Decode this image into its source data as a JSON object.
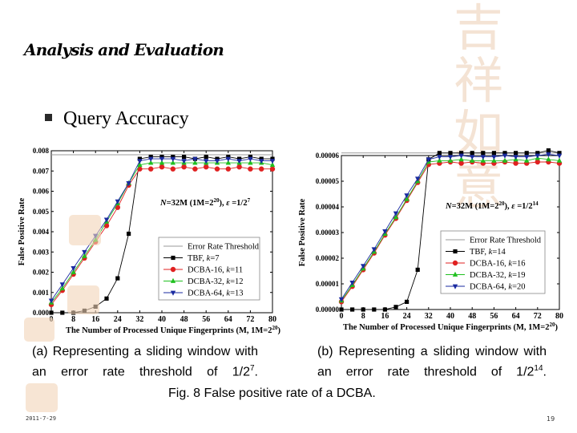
{
  "slide": {
    "title": "Analysis and Evaluation",
    "bullet": "Query Accuracy",
    "caption_a_text": "(a) Representing a sliding window with an error rate threshold of 1/2",
    "caption_a_exp": "7",
    "caption_b_text": "(b) Representing a sliding window with an error rate threshold of 1/2",
    "caption_b_exp": "14",
    "caption_end": ".",
    "fig_caption": "Fig. 8 False positive rate of a DCBA.",
    "date": "2011-7-29",
    "page": "19",
    "decor_chars": "吉祥如意"
  },
  "colors": {
    "threshold": "#9a9a9a",
    "tbf": "#000000",
    "dcba16": "#e02020",
    "dcba32": "#20c020",
    "dcba64": "#1a2aa0",
    "decor": "#f4e3d4"
  },
  "chart_data": [
    {
      "type": "line",
      "ylabel": "False Positive Rate",
      "xlabel": "The Number of Processed Unique Fingerprints (M, 1M=2^20)",
      "xlabel_parts": [
        "The Number of Processed Unique Fingerprints (M, 1M=2",
        "20",
        ")"
      ],
      "annotation_parts": [
        "N",
        "=32M (1M=2",
        "20",
        "), ",
        "ε",
        " =1/2",
        "7"
      ],
      "xlim": [
        0,
        80
      ],
      "ylim": [
        0,
        0.008
      ],
      "xticks": [
        0,
        8,
        16,
        24,
        32,
        40,
        48,
        56,
        64,
        72,
        80
      ],
      "ytick_labels": [
        "0.000",
        "0.001",
        "0.002",
        "0.003",
        "0.004",
        "0.005",
        "0.006",
        "0.007",
        "0.008"
      ],
      "x": [
        0,
        4,
        8,
        12,
        16,
        20,
        24,
        28,
        32,
        36,
        40,
        44,
        48,
        52,
        56,
        60,
        64,
        68,
        72,
        76,
        80
      ],
      "legend": {
        "threshold": "Error Rate Threshold",
        "tbf": [
          "TBF, ",
          "k",
          "=7"
        ],
        "dcba16": [
          "DCBA-16, ",
          "k",
          "=11"
        ],
        "dcba32": [
          "DCBA-32, ",
          "k",
          "=12"
        ],
        "dcba64": [
          "DCBA-64, ",
          "k",
          "=13"
        ]
      },
      "threshold": 0.0078,
      "series": [
        {
          "name": "TBF, k=7",
          "key": "tbf",
          "marker": "square",
          "values": [
            0,
            0,
            0,
            0.0001,
            0.0003,
            0.0007,
            0.0017,
            0.0039,
            0.0076,
            0.0077,
            0.0077,
            0.0077,
            0.0077,
            0.0076,
            0.0077,
            0.0076,
            0.0077,
            0.0076,
            0.0077,
            0.0076,
            0.0076
          ]
        },
        {
          "name": "DCBA-16, k=11",
          "key": "dcba16",
          "marker": "circle",
          "values": [
            0.0004,
            0.0011,
            0.0019,
            0.0027,
            0.0035,
            0.0043,
            0.0052,
            0.0063,
            0.0071,
            0.0071,
            0.0072,
            0.0071,
            0.0072,
            0.0071,
            0.0072,
            0.0071,
            0.0071,
            0.0072,
            0.0071,
            0.0071,
            0.0071
          ]
        },
        {
          "name": "DCBA-32, k=12",
          "key": "dcba32",
          "marker": "triangle-up",
          "values": [
            0.0005,
            0.0012,
            0.002,
            0.0028,
            0.0036,
            0.0045,
            0.0054,
            0.0064,
            0.0073,
            0.0074,
            0.0074,
            0.0074,
            0.0074,
            0.0074,
            0.0074,
            0.0074,
            0.0074,
            0.0074,
            0.0074,
            0.0074,
            0.0073
          ]
        },
        {
          "name": "DCBA-64, k=13",
          "key": "dcba64",
          "marker": "triangle-down",
          "values": [
            0.0006,
            0.0014,
            0.0022,
            0.003,
            0.0038,
            0.0046,
            0.0055,
            0.0064,
            0.0075,
            0.0076,
            0.0076,
            0.0076,
            0.0075,
            0.0076,
            0.0075,
            0.0075,
            0.0076,
            0.0075,
            0.0076,
            0.0075,
            0.0075
          ]
        }
      ]
    },
    {
      "type": "line",
      "ylabel": "False Positive Rate",
      "xlabel": "The Number of Processed Unique Fingerprints (M, 1M=2^20)",
      "xlabel_parts": [
        "The Number of Processed Unique Fingerprints (M, 1M=2",
        "20",
        ")"
      ],
      "annotation_parts": [
        "N",
        "=32M (1M=2",
        "20",
        "), ",
        "ε",
        " =1/2",
        "14"
      ],
      "xlim": [
        0,
        80
      ],
      "ylim": [
        0,
        6e-05
      ],
      "xticks": [
        0,
        8,
        16,
        24,
        32,
        40,
        48,
        56,
        64,
        72,
        80
      ],
      "ytick_labels": [
        "0.00000",
        "0.00001",
        "0.00002",
        "0.00003",
        "0.00004",
        "0.00005",
        "0.00006"
      ],
      "x": [
        0,
        4,
        8,
        12,
        16,
        20,
        24,
        28,
        32,
        36,
        40,
        44,
        48,
        52,
        56,
        60,
        64,
        68,
        72,
        76,
        80
      ],
      "legend": {
        "threshold": "Error Rate Threshold",
        "tbf": [
          "TBF, ",
          "k",
          "=14"
        ],
        "dcba16": [
          "DCBA-16, ",
          "k",
          "=16"
        ],
        "dcba32": [
          "DCBA-32, ",
          "k",
          "=19"
        ],
        "dcba64": [
          "DCBA-64, ",
          "k",
          "=20"
        ]
      },
      "threshold": 6.1e-05,
      "series": [
        {
          "name": "TBF, k=14",
          "key": "tbf",
          "marker": "square",
          "values": [
            0,
            0,
            0,
            0,
            0,
            1e-06,
            3e-06,
            1.55e-05,
            5.85e-05,
            6.1e-05,
            6.1e-05,
            6.1e-05,
            6.1e-05,
            6.1e-05,
            6.1e-05,
            6.1e-05,
            6.1e-05,
            6.1e-05,
            6.1e-05,
            6.2e-05,
            6.1e-05
          ]
        },
        {
          "name": "DCBA-16, k=16",
          "key": "dcba16",
          "marker": "circle",
          "values": [
            3e-06,
            9e-06,
            1.55e-05,
            2.2e-05,
            2.9e-05,
            3.55e-05,
            4.25e-05,
            4.95e-05,
            5.65e-05,
            5.7e-05,
            5.75e-05,
            5.7e-05,
            5.75e-05,
            5.7e-05,
            5.7e-05,
            5.75e-05,
            5.7e-05,
            5.7e-05,
            5.75e-05,
            5.75e-05,
            5.7e-05
          ]
        },
        {
          "name": "DCBA-32, k=19",
          "key": "dcba32",
          "marker": "triangle-up",
          "values": [
            3.5e-06,
            9.5e-06,
            1.6e-05,
            2.25e-05,
            2.95e-05,
            3.6e-05,
            4.3e-05,
            5e-05,
            5.75e-05,
            5.8e-05,
            5.8e-05,
            5.85e-05,
            5.8e-05,
            5.8e-05,
            5.8e-05,
            5.8e-05,
            5.85e-05,
            5.8e-05,
            5.9e-05,
            5.85e-05,
            5.8e-05
          ]
        },
        {
          "name": "DCBA-64, k=20",
          "key": "dcba64",
          "marker": "triangle-down",
          "values": [
            4e-06,
            1.05e-05,
            1.7e-05,
            2.35e-05,
            3.05e-05,
            3.75e-05,
            4.45e-05,
            5.1e-05,
            5.85e-05,
            5.95e-05,
            5.95e-05,
            6e-05,
            5.95e-05,
            5.95e-05,
            5.95e-05,
            6e-05,
            5.95e-05,
            5.95e-05,
            6e-05,
            6.05e-05,
            6e-05
          ]
        }
      ]
    }
  ]
}
